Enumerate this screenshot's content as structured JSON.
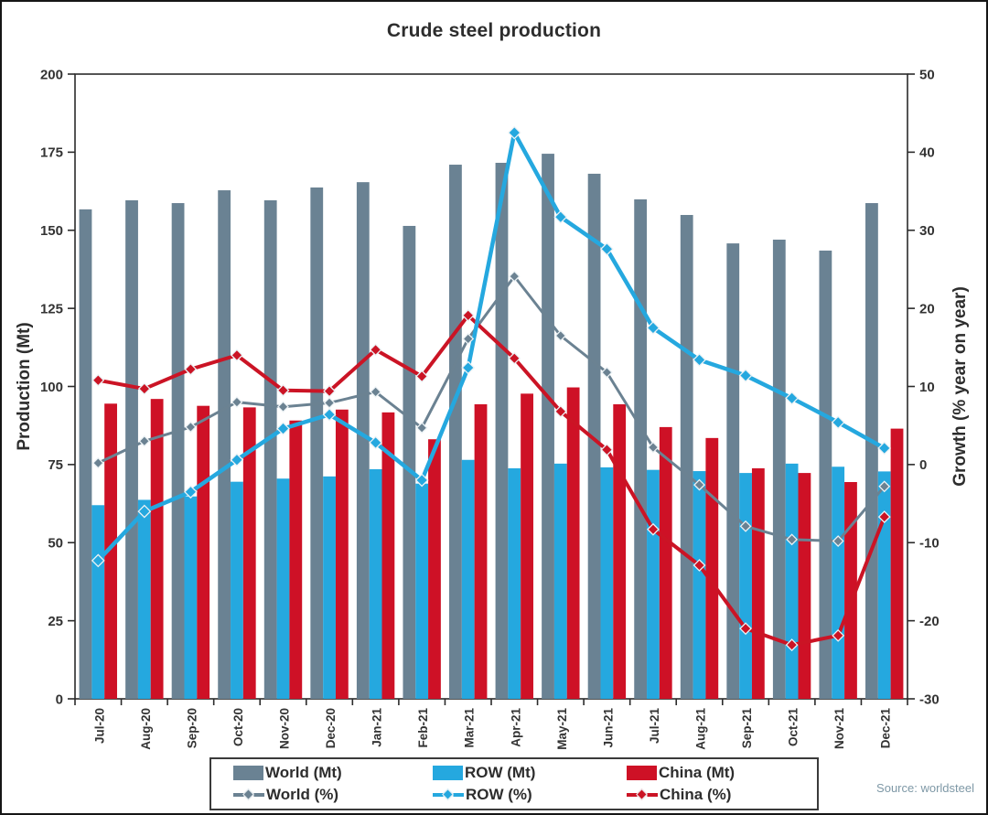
{
  "title": "Crude steel production",
  "source_note": "Source: worldsteel",
  "colors": {
    "world_bar": "#6A8293",
    "row_bar": "#25A8DF",
    "china_bar": "#CE1126",
    "world_line": "#6B8292",
    "row_line": "#25A8DF",
    "china_line": "#CB1425",
    "axis": "#2b2b2b",
    "tick_text": "#333333",
    "marker_edge": "#ecf2f5",
    "source_text": "#7e98a6"
  },
  "legend": {
    "position": "bottom-center",
    "items": [
      {
        "label": "World (Mt)",
        "kind": "bar",
        "color_key": "world_bar"
      },
      {
        "label": "ROW (Mt)",
        "kind": "bar",
        "color_key": "row_bar"
      },
      {
        "label": "China (Mt)",
        "kind": "bar",
        "color_key": "china_bar"
      },
      {
        "label": "World (%)",
        "kind": "line",
        "color_key": "world_line"
      },
      {
        "label": "ROW (%)",
        "kind": "line",
        "color_key": "row_line"
      },
      {
        "label": "China (%)",
        "kind": "line",
        "color_key": "china_line"
      }
    ]
  },
  "chart_data": {
    "type": "bar+line",
    "title": "Crude steel production",
    "categories": [
      "Jul-20",
      "Aug-20",
      "Sep-20",
      "Oct-20",
      "Nov-20",
      "Dec-20",
      "Jan-21",
      "Feb-21",
      "Mar-21",
      "Apr-21",
      "May-21",
      "Jun-21",
      "Jul-21",
      "Aug-21",
      "Sep-21",
      "Oct-21",
      "Nov-21",
      "Dec-21"
    ],
    "left_axis": {
      "label": "Production (Mt)",
      "min": 0,
      "max": 200,
      "step": 25
    },
    "right_axis": {
      "label": "Growth (% year on year)",
      "min": -30,
      "max": 50,
      "step": 10
    },
    "grid": false,
    "bar_series": [
      {
        "name": "World (Mt)",
        "axis": "left",
        "color_key": "world_bar",
        "values": [
          156.7,
          159.6,
          158.7,
          162.8,
          159.6,
          163.7,
          165.4,
          151.4,
          171.0,
          171.6,
          174.5,
          168.1,
          159.9,
          154.9,
          145.8,
          147.0,
          143.5,
          158.7
        ]
      },
      {
        "name": "ROW (Mt)",
        "axis": "left",
        "color_key": "row_bar",
        "values": [
          62.0,
          63.7,
          64.8,
          69.5,
          70.5,
          71.2,
          73.5,
          68.9,
          76.5,
          73.8,
          75.3,
          74.1,
          73.3,
          72.9,
          72.3,
          75.3,
          74.3,
          72.8
        ]
      },
      {
        "name": "China (Mt)",
        "axis": "left",
        "color_key": "china_bar",
        "values": [
          94.5,
          96.0,
          93.8,
          93.3,
          89.1,
          92.6,
          91.7,
          83.1,
          94.3,
          97.7,
          99.7,
          94.3,
          87.0,
          83.5,
          73.8,
          72.3,
          69.4,
          86.5
        ]
      }
    ],
    "line_series": [
      {
        "name": "World (%)",
        "axis": "right",
        "color_key": "world_line",
        "width": 3,
        "marker": 5.5,
        "values": [
          0.2,
          3.0,
          4.8,
          8.0,
          7.4,
          7.9,
          9.3,
          4.7,
          16.1,
          24.1,
          16.5,
          11.8,
          2.2,
          -2.6,
          -7.9,
          -9.6,
          -9.8,
          -2.8
        ]
      },
      {
        "name": "China (%)",
        "axis": "right",
        "color_key": "china_line",
        "width": 4,
        "marker": 6,
        "values": [
          10.8,
          9.7,
          12.2,
          14.0,
          9.5,
          9.4,
          14.7,
          11.3,
          19.1,
          13.6,
          6.8,
          1.9,
          -8.3,
          -12.9,
          -21.0,
          -23.1,
          -21.9,
          -6.7
        ]
      },
      {
        "name": "ROW (%)",
        "axis": "right",
        "color_key": "row_line",
        "width": 4.5,
        "marker": 6.5,
        "values": [
          -12.3,
          -6.0,
          -3.5,
          0.6,
          4.6,
          6.4,
          2.8,
          -2.0,
          12.4,
          42.5,
          31.7,
          27.6,
          17.5,
          13.4,
          11.4,
          8.5,
          5.4,
          2.1
        ]
      }
    ]
  }
}
